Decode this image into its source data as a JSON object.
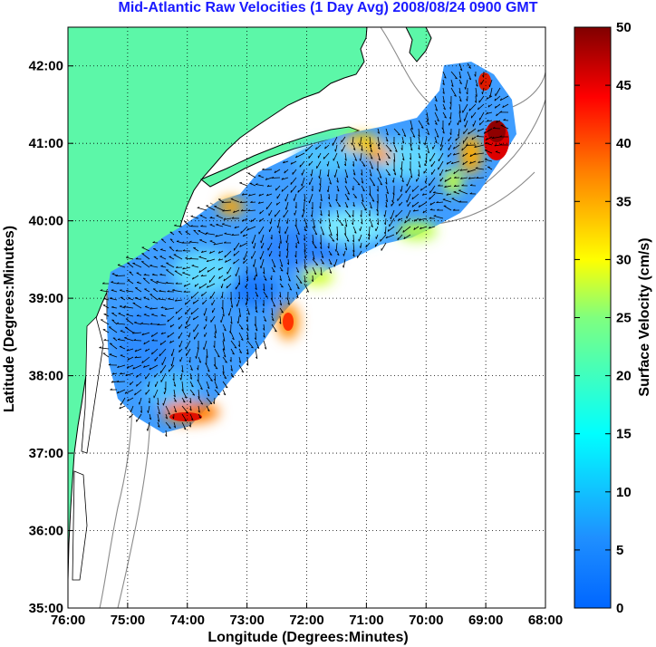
{
  "title": "Mid-Atlantic Raw Velocities (1 Day Avg) 2008/08/24 0900 GMT",
  "map": {
    "x_axis": {
      "label": "Longitude (Degrees:Minutes)",
      "ticks": [
        "76:00",
        "75:00",
        "74:00",
        "73:00",
        "72:00",
        "71:00",
        "70:00",
        "69:00",
        "68:00"
      ],
      "range": [
        -76,
        -68
      ]
    },
    "y_axis": {
      "label": "Latitude (Degrees:Minutes)",
      "ticks": [
        "35:00",
        "36:00",
        "37:00",
        "38:00",
        "39:00",
        "40:00",
        "41:00",
        "42:00"
      ],
      "range": [
        35,
        42.5
      ]
    },
    "grid": "dotted",
    "land_color": "#5cf7a8",
    "coast_color": "#000000",
    "bathymetry_color": "#8a8a8a"
  },
  "colorbar": {
    "label": "Surface Velocity (cm/s)",
    "ticks": [
      "0",
      "5",
      "10",
      "15",
      "20",
      "25",
      "30",
      "35",
      "40",
      "45",
      "50"
    ],
    "range": [
      0,
      50
    ],
    "colormap": "jet"
  }
}
